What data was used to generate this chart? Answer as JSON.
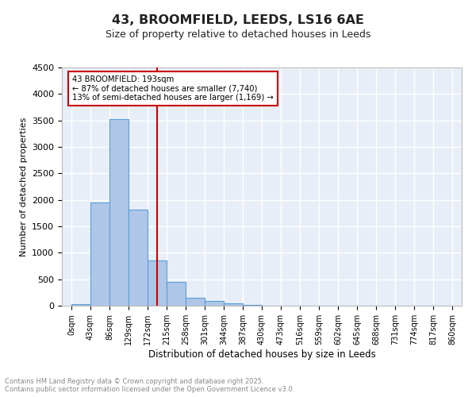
{
  "title": "43, BROOMFIELD, LEEDS, LS16 6AE",
  "subtitle": "Size of property relative to detached houses in Leeds",
  "xlabel": "Distribution of detached houses by size in Leeds",
  "ylabel": "Number of detached properties",
  "bin_edges": [
    0,
    43,
    86,
    129,
    172,
    215,
    258,
    301,
    344,
    387,
    430,
    473,
    516,
    559,
    602,
    645,
    688,
    731,
    774,
    817,
    860
  ],
  "bin_edge_labels": [
    "0sqm",
    "43sqm",
    "86sqm",
    "129sqm",
    "172sqm",
    "215sqm",
    "258sqm",
    "301sqm",
    "344sqm",
    "387sqm",
    "430sqm",
    "473sqm",
    "516sqm",
    "559sqm",
    "602sqm",
    "645sqm",
    "688sqm",
    "731sqm",
    "774sqm",
    "817sqm",
    "860sqm"
  ],
  "bar_values": [
    30,
    1950,
    3520,
    1820,
    860,
    450,
    155,
    85,
    45,
    18,
    5,
    2,
    0,
    0,
    0,
    0,
    0,
    0,
    0,
    0
  ],
  "bar_color": "#aec6e8",
  "bar_edge_color": "#5a9fd4",
  "vline_value": 193,
  "vline_color": "#cc0000",
  "annotation_text": "43 BROOMFIELD: 193sqm\n← 87% of detached houses are smaller (7,740)\n13% of semi-detached houses are larger (1,169) →",
  "annotation_box_color": "#cc0000",
  "ylim": [
    0,
    4500
  ],
  "yticks": [
    0,
    500,
    1000,
    1500,
    2000,
    2500,
    3000,
    3500,
    4000,
    4500
  ],
  "background_color": "#e8eef8",
  "grid_color": "#ffffff",
  "footer": "Contains HM Land Registry data © Crown copyright and database right 2025.\nContains public sector information licensed under the Open Government Licence v3.0."
}
